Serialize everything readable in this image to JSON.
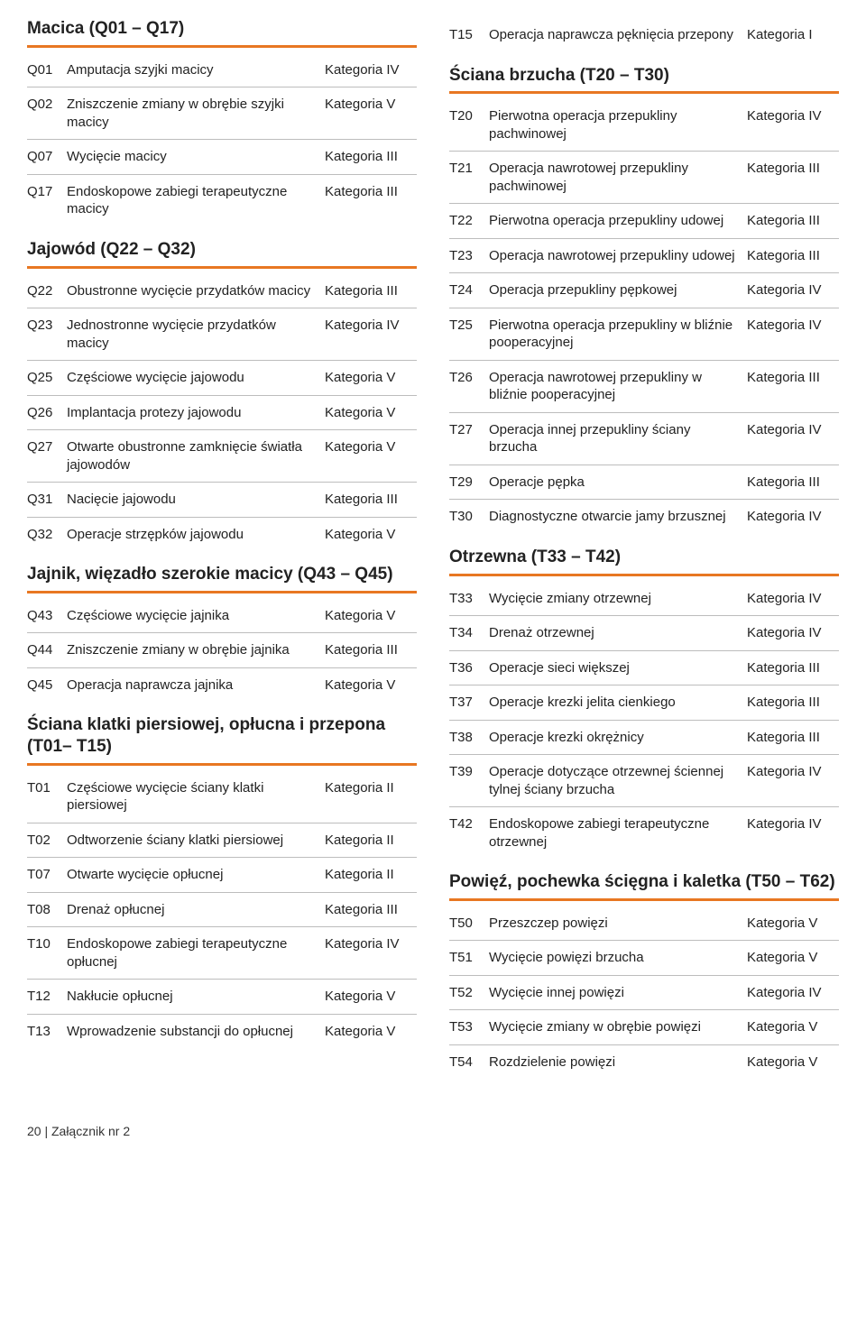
{
  "footer": "20 | Załącznik nr 2",
  "colors": {
    "accent": "#e87722",
    "rule": "#bdbdbd",
    "text": "#222",
    "bg": "#ffffff"
  },
  "left": [
    {
      "heading": "Macica (Q01 – Q17)",
      "rows": [
        {
          "code": "Q01",
          "desc": "Amputacja szyjki macicy",
          "cat": "Kategoria IV"
        },
        {
          "code": "Q02",
          "desc": "Zniszczenie zmiany w obrębie szyjki macicy",
          "cat": "Kategoria V"
        },
        {
          "code": "Q07",
          "desc": "Wycięcie macicy",
          "cat": "Kategoria III"
        },
        {
          "code": "Q17",
          "desc": "Endoskopowe zabiegi terapeutyczne macicy",
          "cat": "Kategoria III"
        }
      ]
    },
    {
      "heading": "Jajowód (Q22 – Q32)",
      "rows": [
        {
          "code": "Q22",
          "desc": "Obustronne wycięcie przydatków macicy",
          "cat": "Kategoria III"
        },
        {
          "code": "Q23",
          "desc": "Jednostronne wycięcie przydatków macicy",
          "cat": "Kategoria IV"
        },
        {
          "code": "Q25",
          "desc": "Częściowe wycięcie jajowodu",
          "cat": "Kategoria V"
        },
        {
          "code": "Q26",
          "desc": "Implantacja protezy jajowodu",
          "cat": "Kategoria V"
        },
        {
          "code": "Q27",
          "desc": "Otwarte obustronne zamknięcie światła jajowodów",
          "cat": "Kategoria V"
        },
        {
          "code": "Q31",
          "desc": "Nacięcie jajowodu",
          "cat": "Kategoria III"
        },
        {
          "code": "Q32",
          "desc": "Operacje strzępków jajowodu",
          "cat": "Kategoria V"
        }
      ]
    },
    {
      "heading": "Jajnik, więzadło szerokie macicy (Q43 – Q45)",
      "rows": [
        {
          "code": "Q43",
          "desc": "Częściowe wycięcie jajnika",
          "cat": "Kategoria V"
        },
        {
          "code": "Q44",
          "desc": "Zniszczenie zmiany w obrębie jajnika",
          "cat": "Kategoria III"
        },
        {
          "code": "Q45",
          "desc": "Operacja naprawcza jajnika",
          "cat": "Kategoria V"
        }
      ]
    },
    {
      "heading": "Ściana klatki piersiowej, opłucna i przepona (T01– T15)",
      "rows": [
        {
          "code": "T01",
          "desc": "Częściowe wycięcie ściany klatki piersiowej",
          "cat": "Kategoria II"
        },
        {
          "code": "T02",
          "desc": "Odtworzenie ściany klatki piersiowej",
          "cat": "Kategoria II"
        },
        {
          "code": "T07",
          "desc": "Otwarte wycięcie opłucnej",
          "cat": "Kategoria II"
        },
        {
          "code": "T08",
          "desc": "Drenaż opłucnej",
          "cat": "Kategoria III"
        },
        {
          "code": "T10",
          "desc": "Endoskopowe zabiegi terapeutyczne opłucnej",
          "cat": "Kategoria IV"
        },
        {
          "code": "T12",
          "desc": "Nakłucie opłucnej",
          "cat": "Kategoria V"
        },
        {
          "code": "T13",
          "desc": "Wprowadzenie substancji do opłucnej",
          "cat": "Kategoria V"
        }
      ]
    }
  ],
  "right": [
    {
      "heading": null,
      "rows": [
        {
          "code": "T15",
          "desc": "Operacja naprawcza pęknięcia przepony",
          "cat": "Kategoria I"
        }
      ]
    },
    {
      "heading": "Ściana brzucha (T20 – T30)",
      "rows": [
        {
          "code": "T20",
          "desc": "Pierwotna operacja przepukliny pachwinowej",
          "cat": "Kategoria IV"
        },
        {
          "code": "T21",
          "desc": "Operacja nawrotowej przepukliny pachwinowej",
          "cat": "Kategoria III"
        },
        {
          "code": "T22",
          "desc": "Pierwotna operacja przepukliny udowej",
          "cat": "Kategoria III"
        },
        {
          "code": "T23",
          "desc": "Operacja nawrotowej przepukliny udowej",
          "cat": "Kategoria III"
        },
        {
          "code": "T24",
          "desc": "Operacja przepukliny pępkowej",
          "cat": "Kategoria IV"
        },
        {
          "code": "T25",
          "desc": "Pierwotna operacja przepukliny w bliźnie pooperacyjnej",
          "cat": "Kategoria IV"
        },
        {
          "code": "T26",
          "desc": "Operacja nawrotowej przepukliny w bliźnie pooperacyjnej",
          "cat": "Kategoria III"
        },
        {
          "code": "T27",
          "desc": "Operacja innej przepukliny ściany brzucha",
          "cat": "Kategoria IV"
        },
        {
          "code": "T29",
          "desc": "Operacje pępka",
          "cat": "Kategoria III"
        },
        {
          "code": "T30",
          "desc": "Diagnostyczne otwarcie jamy brzusznej",
          "cat": "Kategoria IV"
        }
      ]
    },
    {
      "heading": "Otrzewna (T33 – T42)",
      "rows": [
        {
          "code": "T33",
          "desc": "Wycięcie zmiany otrzewnej",
          "cat": "Kategoria IV"
        },
        {
          "code": "T34",
          "desc": "Drenaż otrzewnej",
          "cat": "Kategoria IV"
        },
        {
          "code": "T36",
          "desc": "Operacje sieci większej",
          "cat": "Kategoria III"
        },
        {
          "code": "T37",
          "desc": "Operacje krezki jelita cienkiego",
          "cat": "Kategoria III"
        },
        {
          "code": "T38",
          "desc": "Operacje krezki okrężnicy",
          "cat": "Kategoria III"
        },
        {
          "code": "T39",
          "desc": "Operacje dotyczące otrzewnej ściennej tylnej ściany brzucha",
          "cat": "Kategoria IV"
        },
        {
          "code": "T42",
          "desc": "Endoskopowe zabiegi terapeutyczne otrzewnej",
          "cat": "Kategoria IV"
        }
      ]
    },
    {
      "heading": "Powięź, pochewka ścięgna i kaletka (T50 – T62)",
      "rows": [
        {
          "code": "T50",
          "desc": "Przeszczep powięzi",
          "cat": "Kategoria V"
        },
        {
          "code": "T51",
          "desc": "Wycięcie powięzi brzucha",
          "cat": "Kategoria V"
        },
        {
          "code": "T52",
          "desc": "Wycięcie innej powięzi",
          "cat": "Kategoria IV"
        },
        {
          "code": "T53",
          "desc": "Wycięcie zmiany w obrębie powięzi",
          "cat": "Kategoria V"
        },
        {
          "code": "T54",
          "desc": "Rozdzielenie powięzi",
          "cat": "Kategoria V"
        }
      ]
    }
  ]
}
